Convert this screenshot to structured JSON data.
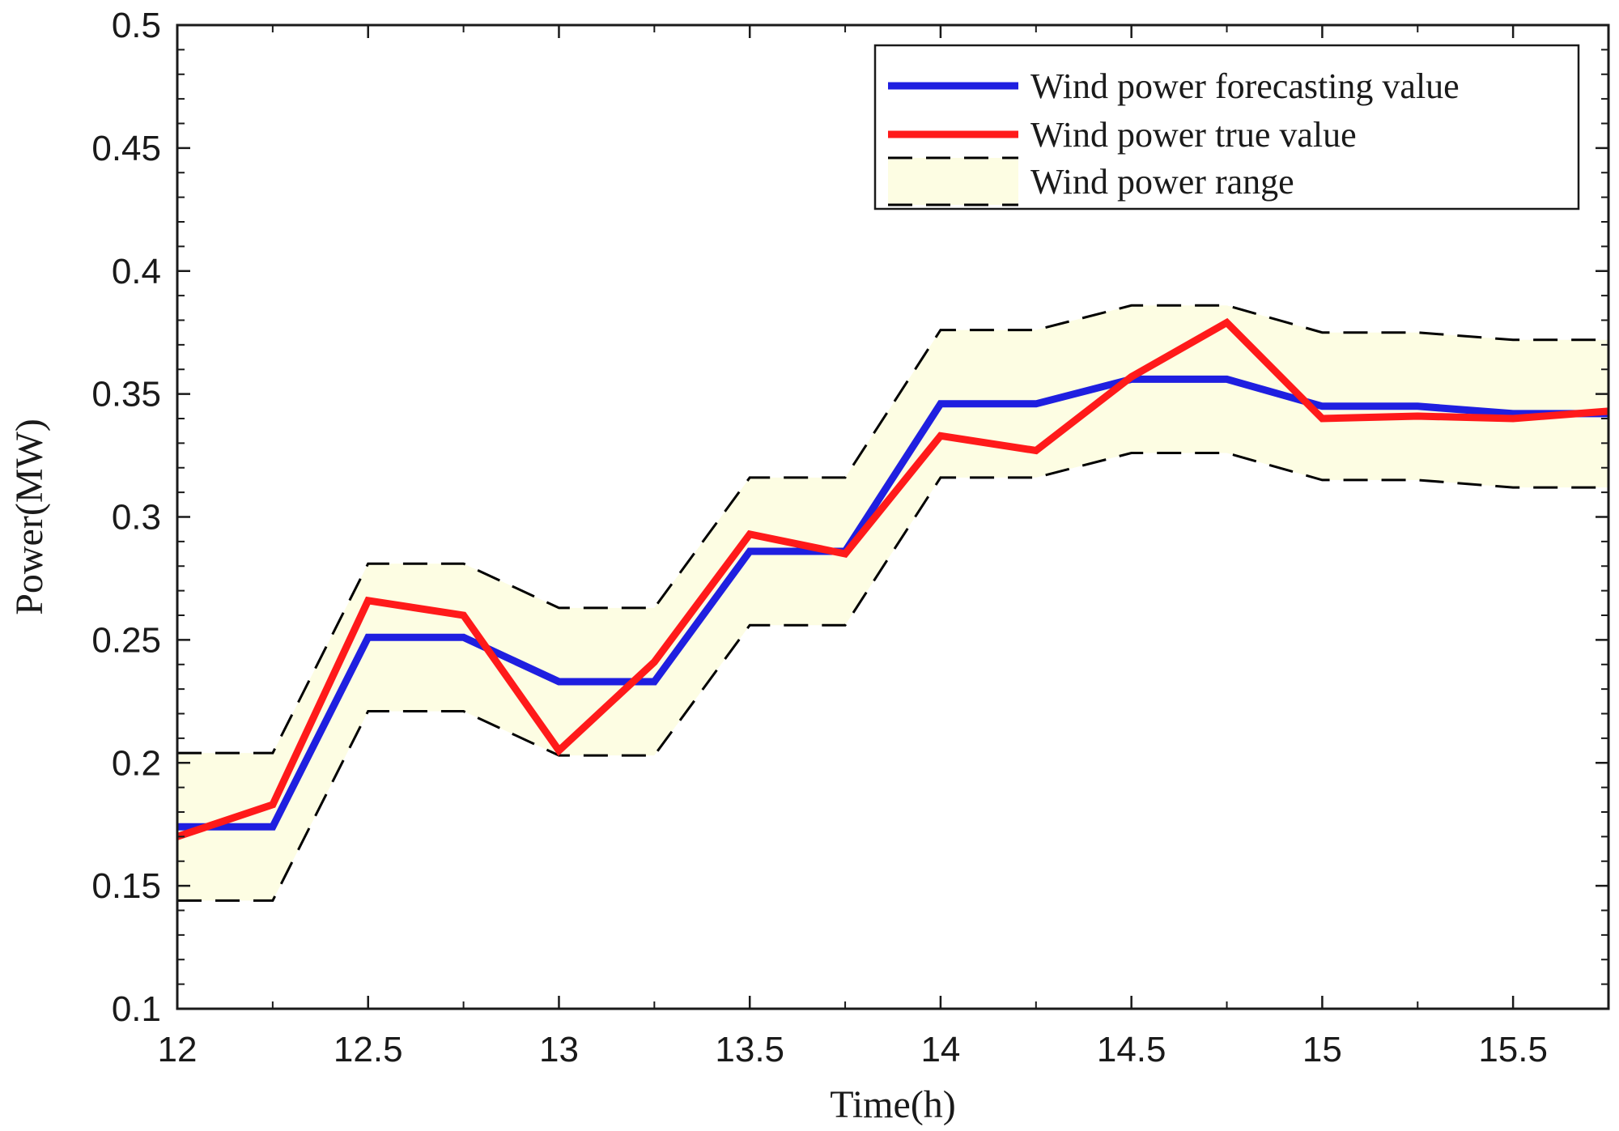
{
  "chart_data": {
    "type": "line",
    "title": "",
    "xlabel": "Time(h)",
    "ylabel": "Power(MW)",
    "xlim": [
      12,
      15.75
    ],
    "ylim": [
      0.1,
      0.5
    ],
    "x_ticks": [
      12,
      12.5,
      13,
      13.5,
      14,
      14.5,
      15,
      15.5
    ],
    "x_tick_labels": [
      "12",
      "12.5",
      "13",
      "13.5",
      "14",
      "14.5",
      "15",
      "15.5"
    ],
    "y_ticks": [
      0.1,
      0.15,
      0.2,
      0.25,
      0.3,
      0.35,
      0.4,
      0.45,
      0.5
    ],
    "y_tick_labels": [
      "0.1",
      "0.15",
      "0.2",
      "0.25",
      "0.3",
      "0.35",
      "0.4",
      "0.45",
      "0.5"
    ],
    "legend_position": "top-right",
    "x": [
      12,
      12.25,
      12.5,
      12.75,
      13,
      13.25,
      13.5,
      13.75,
      14,
      14.25,
      14.5,
      14.75,
      15,
      15.25,
      15.5,
      15.75
    ],
    "series": [
      {
        "name": "Wind power forecasting value",
        "color": "#1f1fe0",
        "values": [
          0.174,
          0.174,
          0.251,
          0.251,
          0.233,
          0.233,
          0.286,
          0.286,
          0.346,
          0.346,
          0.356,
          0.356,
          0.345,
          0.345,
          0.342,
          0.342
        ]
      },
      {
        "name": "Wind power true value",
        "color": "#ff1a1a",
        "values": [
          0.17,
          0.183,
          0.266,
          0.26,
          0.205,
          0.241,
          0.293,
          0.285,
          0.333,
          0.327,
          0.357,
          0.379,
          0.34,
          0.341,
          0.34,
          0.343
        ]
      }
    ],
    "range": {
      "name": "Wind power range",
      "fill_color": "#fdfde3",
      "line_color": "#000000",
      "upper": [
        0.204,
        0.204,
        0.281,
        0.281,
        0.263,
        0.263,
        0.316,
        0.316,
        0.376,
        0.376,
        0.386,
        0.386,
        0.375,
        0.375,
        0.372,
        0.372
      ],
      "lower": [
        0.144,
        0.144,
        0.221,
        0.221,
        0.203,
        0.203,
        0.256,
        0.256,
        0.316,
        0.316,
        0.326,
        0.326,
        0.315,
        0.315,
        0.312,
        0.312
      ]
    }
  }
}
